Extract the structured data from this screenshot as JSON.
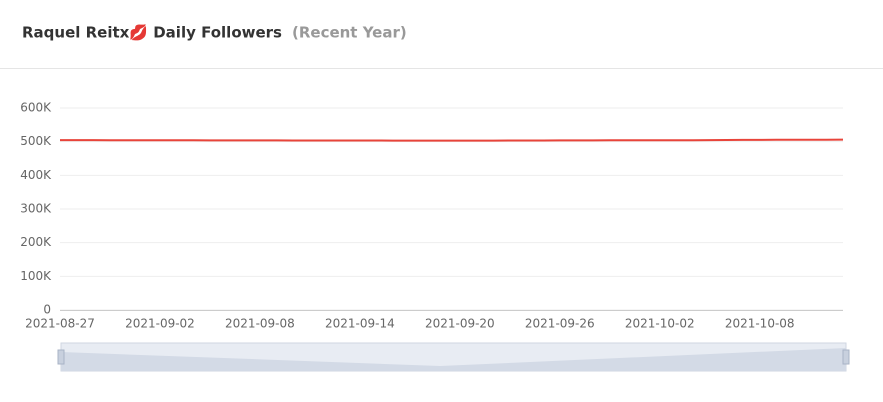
{
  "chart_data": {
    "type": "line",
    "title": "Raquel Reitx💋 Daily Followers",
    "subtitle": "(Recent Year)",
    "x": [
      "2021-08-27",
      "2021-08-28",
      "2021-08-29",
      "2021-08-30",
      "2021-08-31",
      "2021-09-01",
      "2021-09-02",
      "2021-09-03",
      "2021-09-04",
      "2021-09-05",
      "2021-09-06",
      "2021-09-07",
      "2021-09-08",
      "2021-09-09",
      "2021-09-10",
      "2021-09-11",
      "2021-09-12",
      "2021-09-13",
      "2021-09-14",
      "2021-09-15",
      "2021-09-16",
      "2021-09-17",
      "2021-09-18",
      "2021-09-19",
      "2021-09-20",
      "2021-09-21",
      "2021-09-22",
      "2021-09-23",
      "2021-09-24",
      "2021-09-25",
      "2021-09-26",
      "2021-09-27",
      "2021-09-28",
      "2021-09-29",
      "2021-09-30",
      "2021-10-01",
      "2021-10-02",
      "2021-10-03",
      "2021-10-04",
      "2021-10-05",
      "2021-10-06",
      "2021-10-07",
      "2021-10-08",
      "2021-10-09",
      "2021-10-10",
      "2021-10-11",
      "2021-10-12",
      "2021-10-13"
    ],
    "series": [
      {
        "name": "Followers",
        "color": "#e8443a",
        "values": [
          504800,
          504700,
          504600,
          504500,
          504400,
          504300,
          504200,
          504100,
          504000,
          503900,
          503800,
          503800,
          503700,
          503700,
          503600,
          503600,
          503500,
          503500,
          503400,
          503400,
          503300,
          503300,
          503200,
          503200,
          503100,
          503200,
          503300,
          503400,
          503500,
          503600,
          503700,
          503800,
          503900,
          504000,
          504100,
          504200,
          504300,
          504400,
          504500,
          504700,
          504900,
          505100,
          505300,
          505500,
          505700,
          505800,
          505900,
          506000
        ]
      }
    ],
    "xticks": [
      "2021-08-27",
      "2021-09-02",
      "2021-09-08",
      "2021-09-14",
      "2021-09-20",
      "2021-09-26",
      "2021-10-02",
      "2021-10-08"
    ],
    "ylim": [
      0,
      600000
    ],
    "yticks": [
      0,
      {
        "value": 100000,
        "label": "100K"
      },
      {
        "value": 200000,
        "label": "200K"
      },
      {
        "value": 300000,
        "label": "300K"
      },
      {
        "value": 400000,
        "label": "400K"
      },
      {
        "value": 500000,
        "label": "500K"
      },
      {
        "value": 600000,
        "label": "600K"
      }
    ],
    "grid": true
  }
}
